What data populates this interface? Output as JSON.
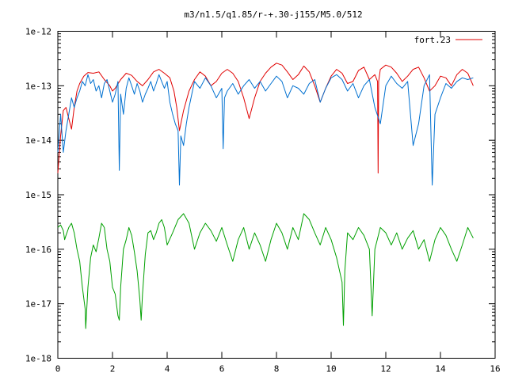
{
  "chart_data": {
    "type": "line",
    "title": "m3/n1.5/q1.85/r-+.30-j155/M5.0/512",
    "xlabel": "",
    "ylabel": "",
    "xlim": [
      0,
      16
    ],
    "ylim": [
      1e-18,
      1e-12
    ],
    "y_scale": "log",
    "grid": false,
    "legend_position": "top-right",
    "x_ticks": [
      0,
      2,
      4,
      6,
      8,
      10,
      12,
      14,
      16
    ],
    "x_tick_labels": [
      "0",
      "2",
      "4",
      "6",
      "8",
      "10",
      "12",
      "14",
      "16"
    ],
    "y_ticks": [
      1e-18,
      1e-17,
      1e-16,
      1e-15,
      1e-14,
      1e-13,
      1e-12
    ],
    "y_tick_labels": [
      "1e-18",
      "1e-17",
      "1e-16",
      "1e-15",
      "1e-14",
      "1e-13",
      "1e-12"
    ],
    "series": [
      {
        "name": "fort.23",
        "color": "#e00000",
        "in_legend": true,
        "x": [
          0.0,
          0.1,
          0.2,
          0.3,
          0.4,
          0.5,
          0.6,
          0.7,
          0.8,
          0.95,
          1.1,
          1.3,
          1.5,
          1.7,
          1.9,
          2.0,
          2.1,
          2.3,
          2.5,
          2.7,
          2.9,
          3.1,
          3.3,
          3.5,
          3.7,
          3.9,
          4.1,
          4.25,
          4.35,
          4.45,
          4.6,
          4.8,
          5.0,
          5.2,
          5.4,
          5.6,
          5.8,
          6.0,
          6.2,
          6.4,
          6.6,
          6.8,
          7.0,
          7.2,
          7.4,
          7.6,
          7.8,
          8.0,
          8.2,
          8.4,
          8.6,
          8.8,
          9.0,
          9.2,
          9.4,
          9.6,
          9.8,
          10.0,
          10.2,
          10.4,
          10.6,
          10.8,
          11.0,
          11.2,
          11.4,
          11.6,
          11.7,
          11.72,
          11.74,
          11.8,
          12.0,
          12.2,
          12.4,
          12.6,
          12.8,
          13.0,
          13.2,
          13.4,
          13.6,
          13.8,
          14.0,
          14.2,
          14.4,
          14.6,
          14.8,
          15.0,
          15.2
        ],
        "y": [
          2.5e-15,
          1.2e-14,
          3.5e-14,
          4e-14,
          2.5e-14,
          1.6e-14,
          4e-14,
          8e-14,
          1.1e-13,
          1.5e-13,
          1.75e-13,
          1.7e-13,
          1.8e-13,
          1.3e-13,
          1e-13,
          8e-14,
          9e-14,
          1.3e-13,
          1.7e-13,
          1.55e-13,
          1.2e-13,
          1e-13,
          1.3e-13,
          1.8e-13,
          2e-13,
          1.7e-13,
          1.4e-13,
          8e-14,
          4e-14,
          1.5e-14,
          3.5e-14,
          8e-14,
          1.3e-13,
          1.8e-13,
          1.5e-13,
          1e-13,
          1.2e-13,
          1.7e-13,
          2e-13,
          1.7e-13,
          1.2e-13,
          6e-14,
          2.5e-14,
          6e-14,
          1.2e-13,
          1.7e-13,
          2.2e-13,
          2.6e-13,
          2.4e-13,
          1.8e-13,
          1.3e-13,
          1.6e-13,
          2.3e-13,
          1.8e-13,
          1e-13,
          5e-14,
          9e-14,
          1.5e-13,
          2e-13,
          1.7e-13,
          1.1e-13,
          1.2e-13,
          1.9e-13,
          2.2e-13,
          1.3e-13,
          1.6e-13,
          1.2e-13,
          2.5e-15,
          1.2e-13,
          2e-13,
          2.4e-13,
          2.2e-13,
          1.7e-13,
          1.2e-13,
          1.5e-13,
          2e-13,
          2.2e-13,
          1.4e-13,
          8e-14,
          1e-13,
          1.5e-13,
          1.4e-13,
          1e-13,
          1.6e-13,
          2e-13,
          1.7e-13,
          1e-13
        ]
      },
      {
        "name": "",
        "color": "#0070d0",
        "in_legend": false,
        "x": [
          0.0,
          0.1,
          0.2,
          0.3,
          0.4,
          0.5,
          0.6,
          0.7,
          0.8,
          0.9,
          1.0,
          1.1,
          1.2,
          1.3,
          1.4,
          1.5,
          1.6,
          1.7,
          1.8,
          1.9,
          2.0,
          2.1,
          2.2,
          2.25,
          2.3,
          2.4,
          2.5,
          2.6,
          2.7,
          2.8,
          2.9,
          3.0,
          3.1,
          3.2,
          3.3,
          3.4,
          3.5,
          3.6,
          3.7,
          3.8,
          3.9,
          4.0,
          4.1,
          4.2,
          4.3,
          4.4,
          4.45,
          4.5,
          4.6,
          4.7,
          4.8,
          4.9,
          5.0,
          5.2,
          5.4,
          5.6,
          5.8,
          6.0,
          6.05,
          6.1,
          6.2,
          6.4,
          6.6,
          6.8,
          7.0,
          7.2,
          7.4,
          7.6,
          7.8,
          8.0,
          8.2,
          8.4,
          8.6,
          8.8,
          9.0,
          9.2,
          9.4,
          9.6,
          9.8,
          10.0,
          10.2,
          10.4,
          10.6,
          10.8,
          11.0,
          11.2,
          11.4,
          11.6,
          11.8,
          12.0,
          12.2,
          12.4,
          12.6,
          12.8,
          13.0,
          13.2,
          13.4,
          13.6,
          13.7,
          13.8,
          14.0,
          14.2,
          14.4,
          14.6,
          14.8,
          15.0,
          15.2
        ],
        "y": [
          6e-15,
          3e-14,
          6e-15,
          1.5e-14,
          3e-14,
          6e-14,
          4e-14,
          6e-14,
          8e-14,
          1.2e-13,
          1e-13,
          1.6e-13,
          1.1e-13,
          1.3e-13,
          8e-14,
          1e-13,
          6e-14,
          1.1e-13,
          1.3e-13,
          8e-14,
          5e-14,
          7e-14,
          1.2e-13,
          2.8e-15,
          7e-14,
          3e-14,
          9e-14,
          1.4e-13,
          1e-13,
          7e-14,
          1.1e-13,
          8e-14,
          5e-14,
          7e-14,
          9e-14,
          1.2e-13,
          8e-14,
          1.1e-13,
          1.6e-13,
          1.2e-13,
          9e-14,
          1.2e-13,
          5e-14,
          3e-14,
          2e-14,
          1.5e-14,
          1.5e-15,
          1.2e-14,
          8e-15,
          2e-14,
          4e-14,
          7e-14,
          1.2e-13,
          9e-14,
          1.4e-13,
          1e-13,
          6e-14,
          9e-14,
          7e-15,
          6e-14,
          8e-14,
          1.1e-13,
          7e-14,
          1e-13,
          1.3e-13,
          9e-14,
          1.2e-13,
          8e-14,
          1.1e-13,
          1.5e-13,
          1.2e-13,
          6e-14,
          1e-13,
          9e-14,
          7e-14,
          1.1e-13,
          1.3e-13,
          5e-14,
          9e-14,
          1.4e-13,
          1.6e-13,
          1.3e-13,
          8e-14,
          1.1e-13,
          6e-14,
          1e-13,
          1.3e-13,
          4e-14,
          2e-14,
          1e-13,
          1.5e-13,
          1.1e-13,
          9e-14,
          1.2e-13,
          8e-15,
          2e-14,
          1e-13,
          1.6e-13,
          1.5e-15,
          3e-14,
          6e-14,
          1.1e-13,
          9e-14,
          1.2e-13,
          1.4e-13,
          1.3e-13,
          1.4e-13
        ]
      },
      {
        "name": "",
        "color": "#00a000",
        "in_legend": false,
        "x": [
          0.0,
          0.1,
          0.2,
          0.25,
          0.3,
          0.4,
          0.5,
          0.6,
          0.7,
          0.8,
          0.9,
          1.0,
          1.02,
          1.1,
          1.2,
          1.3,
          1.4,
          1.5,
          1.6,
          1.7,
          1.8,
          1.9,
          2.0,
          2.1,
          2.2,
          2.25,
          2.3,
          2.4,
          2.5,
          2.6,
          2.7,
          2.8,
          2.9,
          3.0,
          3.05,
          3.1,
          3.2,
          3.3,
          3.4,
          3.5,
          3.6,
          3.7,
          3.8,
          3.9,
          4.0,
          4.2,
          4.4,
          4.6,
          4.8,
          5.0,
          5.2,
          5.4,
          5.6,
          5.8,
          6.0,
          6.2,
          6.4,
          6.6,
          6.8,
          7.0,
          7.2,
          7.4,
          7.6,
          7.8,
          8.0,
          8.2,
          8.4,
          8.6,
          8.8,
          9.0,
          9.2,
          9.4,
          9.6,
          9.8,
          10.0,
          10.2,
          10.4,
          10.45,
          10.5,
          10.6,
          10.8,
          11.0,
          11.2,
          11.4,
          11.5,
          11.6,
          11.8,
          12.0,
          12.2,
          12.4,
          12.6,
          12.8,
          13.0,
          13.2,
          13.4,
          13.6,
          13.8,
          14.0,
          14.2,
          14.4,
          14.6,
          14.8,
          15.0,
          15.2
        ],
        "y": [
          2.5e-16,
          2.8e-16,
          2.2e-16,
          1.5e-16,
          1.8e-16,
          2.5e-16,
          3e-16,
          2e-16,
          1e-16,
          6e-17,
          2e-17,
          8e-18,
          3.5e-18,
          2e-17,
          7e-17,
          1.2e-16,
          9e-17,
          1.6e-16,
          3e-16,
          2.5e-16,
          1e-16,
          6e-17,
          2e-17,
          1.5e-17,
          6e-18,
          5e-18,
          2e-17,
          1e-16,
          1.5e-16,
          2.5e-16,
          1.8e-16,
          9e-17,
          4e-17,
          1.2e-17,
          5e-18,
          1.5e-17,
          8e-17,
          2e-16,
          2.2e-16,
          1.5e-16,
          2e-16,
          3e-16,
          3.5e-16,
          2.5e-16,
          1.2e-16,
          2e-16,
          3.5e-16,
          4.5e-16,
          3e-16,
          1e-16,
          2e-16,
          3e-16,
          2.2e-16,
          1.4e-16,
          2.5e-16,
          1.2e-16,
          6e-17,
          1.5e-16,
          2.5e-16,
          1e-16,
          2e-16,
          1.2e-16,
          6e-17,
          1.5e-16,
          3e-16,
          2e-16,
          1e-16,
          2.5e-16,
          1.5e-16,
          4.5e-16,
          3.5e-16,
          2e-16,
          1.2e-16,
          2.5e-16,
          1.5e-16,
          7e-17,
          2.5e-17,
          4e-18,
          4e-17,
          2e-16,
          1.5e-16,
          2.5e-16,
          1.8e-16,
          1e-16,
          6e-18,
          1e-16,
          2.5e-16,
          2e-16,
          1.2e-16,
          2e-16,
          1e-16,
          1.6e-16,
          2.2e-16,
          1e-16,
          1.5e-16,
          6e-17,
          1.5e-16,
          2.5e-16,
          1.8e-16,
          1e-16,
          6e-17,
          1.2e-16,
          2.5e-16,
          1.6e-16
        ]
      }
    ]
  }
}
